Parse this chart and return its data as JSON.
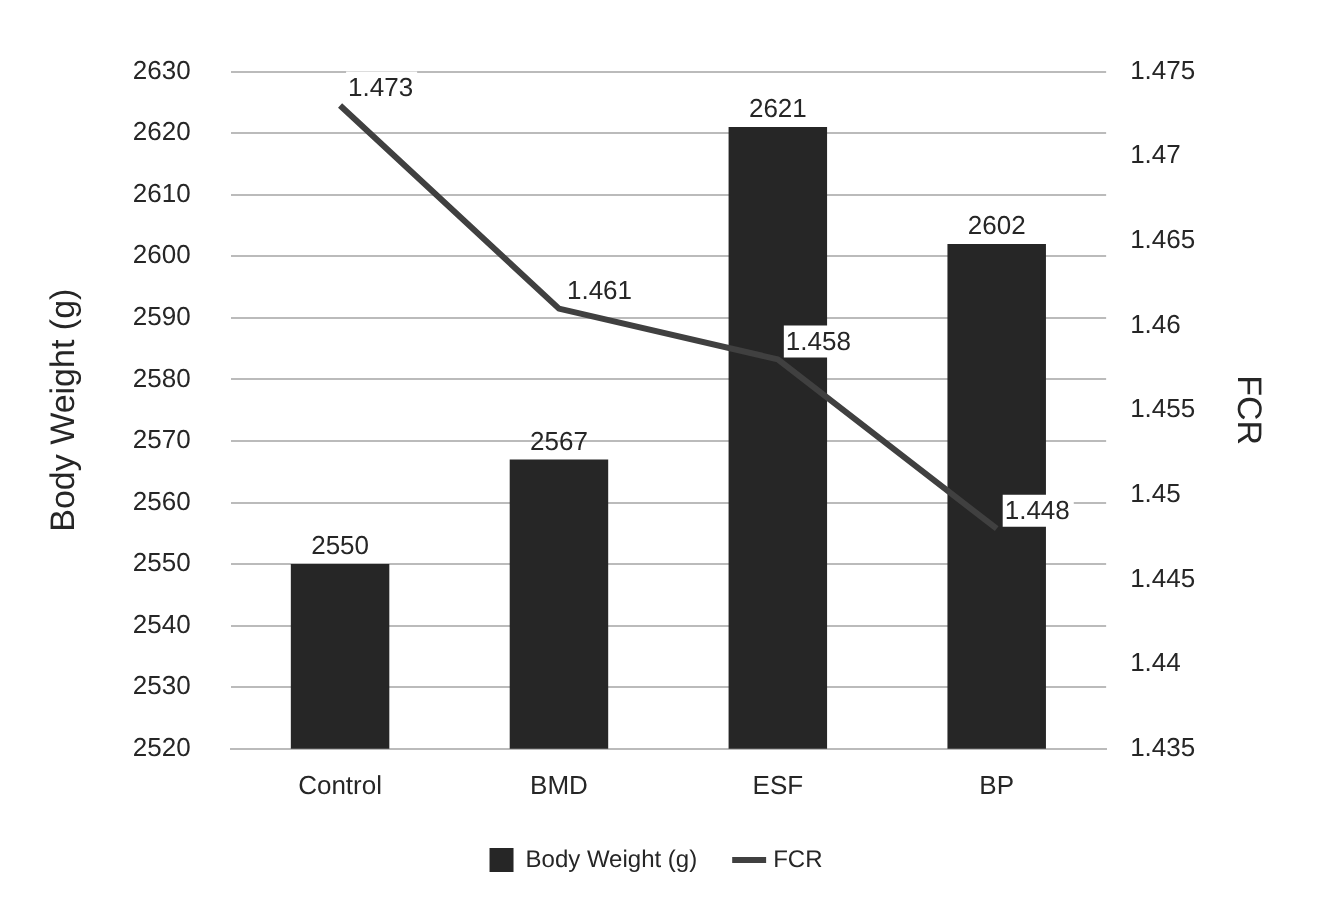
{
  "chart_data": {
    "type": "bar",
    "categories": [
      "Control",
      "BMD",
      "ESF",
      "BP"
    ],
    "series": [
      {
        "name": "Body Weight (g)",
        "color": "#262626",
        "values": [
          2550,
          2567,
          2621,
          2602
        ]
      },
      {
        "name": "FCR",
        "type": "line",
        "axis": "y2",
        "color": "#404040",
        "values": [
          1.473,
          1.461,
          1.458,
          1.448
        ]
      }
    ],
    "ylabel": "Body Weight (g)",
    "y2label": "FCR",
    "ylim": [
      2520,
      2630
    ],
    "yticks": [
      2520,
      2530,
      2540,
      2550,
      2560,
      2570,
      2580,
      2590,
      2600,
      2610,
      2620,
      2630
    ],
    "y2lim": [
      1.435,
      1.475
    ],
    "y2ticks": [
      1.435,
      1.44,
      1.445,
      1.45,
      1.455,
      1.46,
      1.465,
      1.47,
      1.475
    ],
    "grid": "y",
    "legend": "bottom",
    "data_labels": true
  }
}
